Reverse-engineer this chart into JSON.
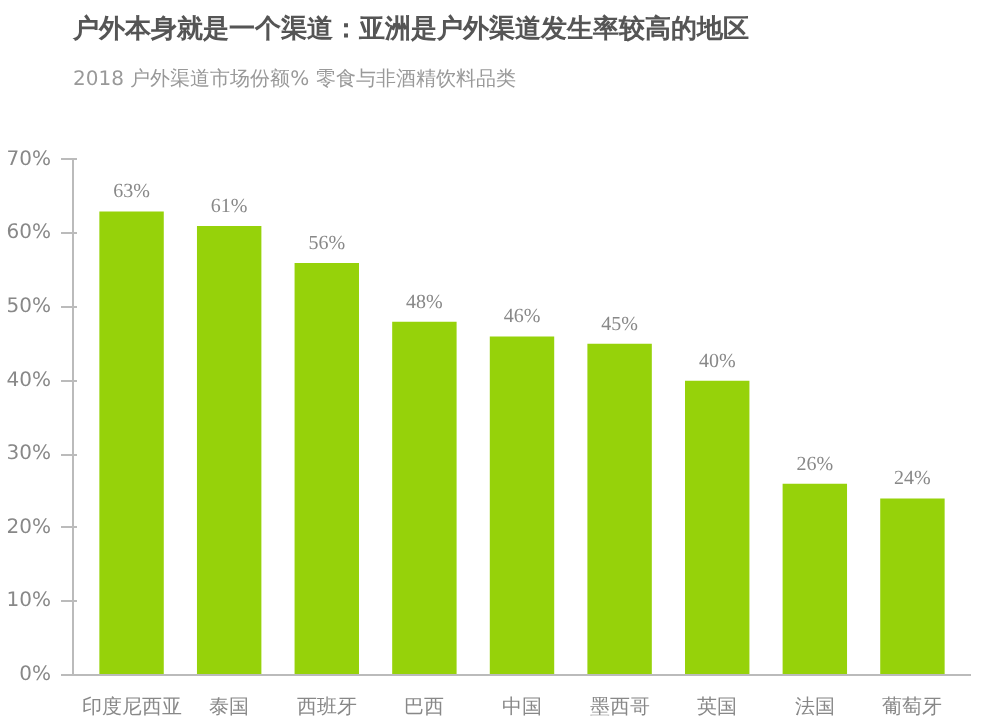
{
  "chart_data": {
    "type": "bar",
    "title": "户外本身就是一个渠道：亚洲是户外渠道发生率较高的地区",
    "subtitle": "2018 户外渠道市场份额% 零食与非酒精饮料品类",
    "categories": [
      "印度尼西亚",
      "泰国",
      "西班牙",
      "巴西",
      "中国",
      "墨西哥",
      "英国",
      "法国",
      "葡萄牙"
    ],
    "values": [
      63,
      61,
      56,
      48,
      46,
      45,
      40,
      26,
      24
    ],
    "value_labels": [
      "63%",
      "61%",
      "56%",
      "48%",
      "46%",
      "45%",
      "40%",
      "26%",
      "24%"
    ],
    "color": "#96d20a",
    "ylim": [
      0,
      70
    ],
    "yticks": [
      {
        "value": 0,
        "label": "0%"
      },
      {
        "value": 10,
        "label": "10%"
      },
      {
        "value": 20,
        "label": "20%"
      },
      {
        "value": 30,
        "label": "30%"
      },
      {
        "value": 40,
        "label": "40%"
      },
      {
        "value": 50,
        "label": "50%"
      },
      {
        "value": 60,
        "label": "60%"
      },
      {
        "value": 70,
        "label": "70%"
      }
    ],
    "grid": false
  }
}
